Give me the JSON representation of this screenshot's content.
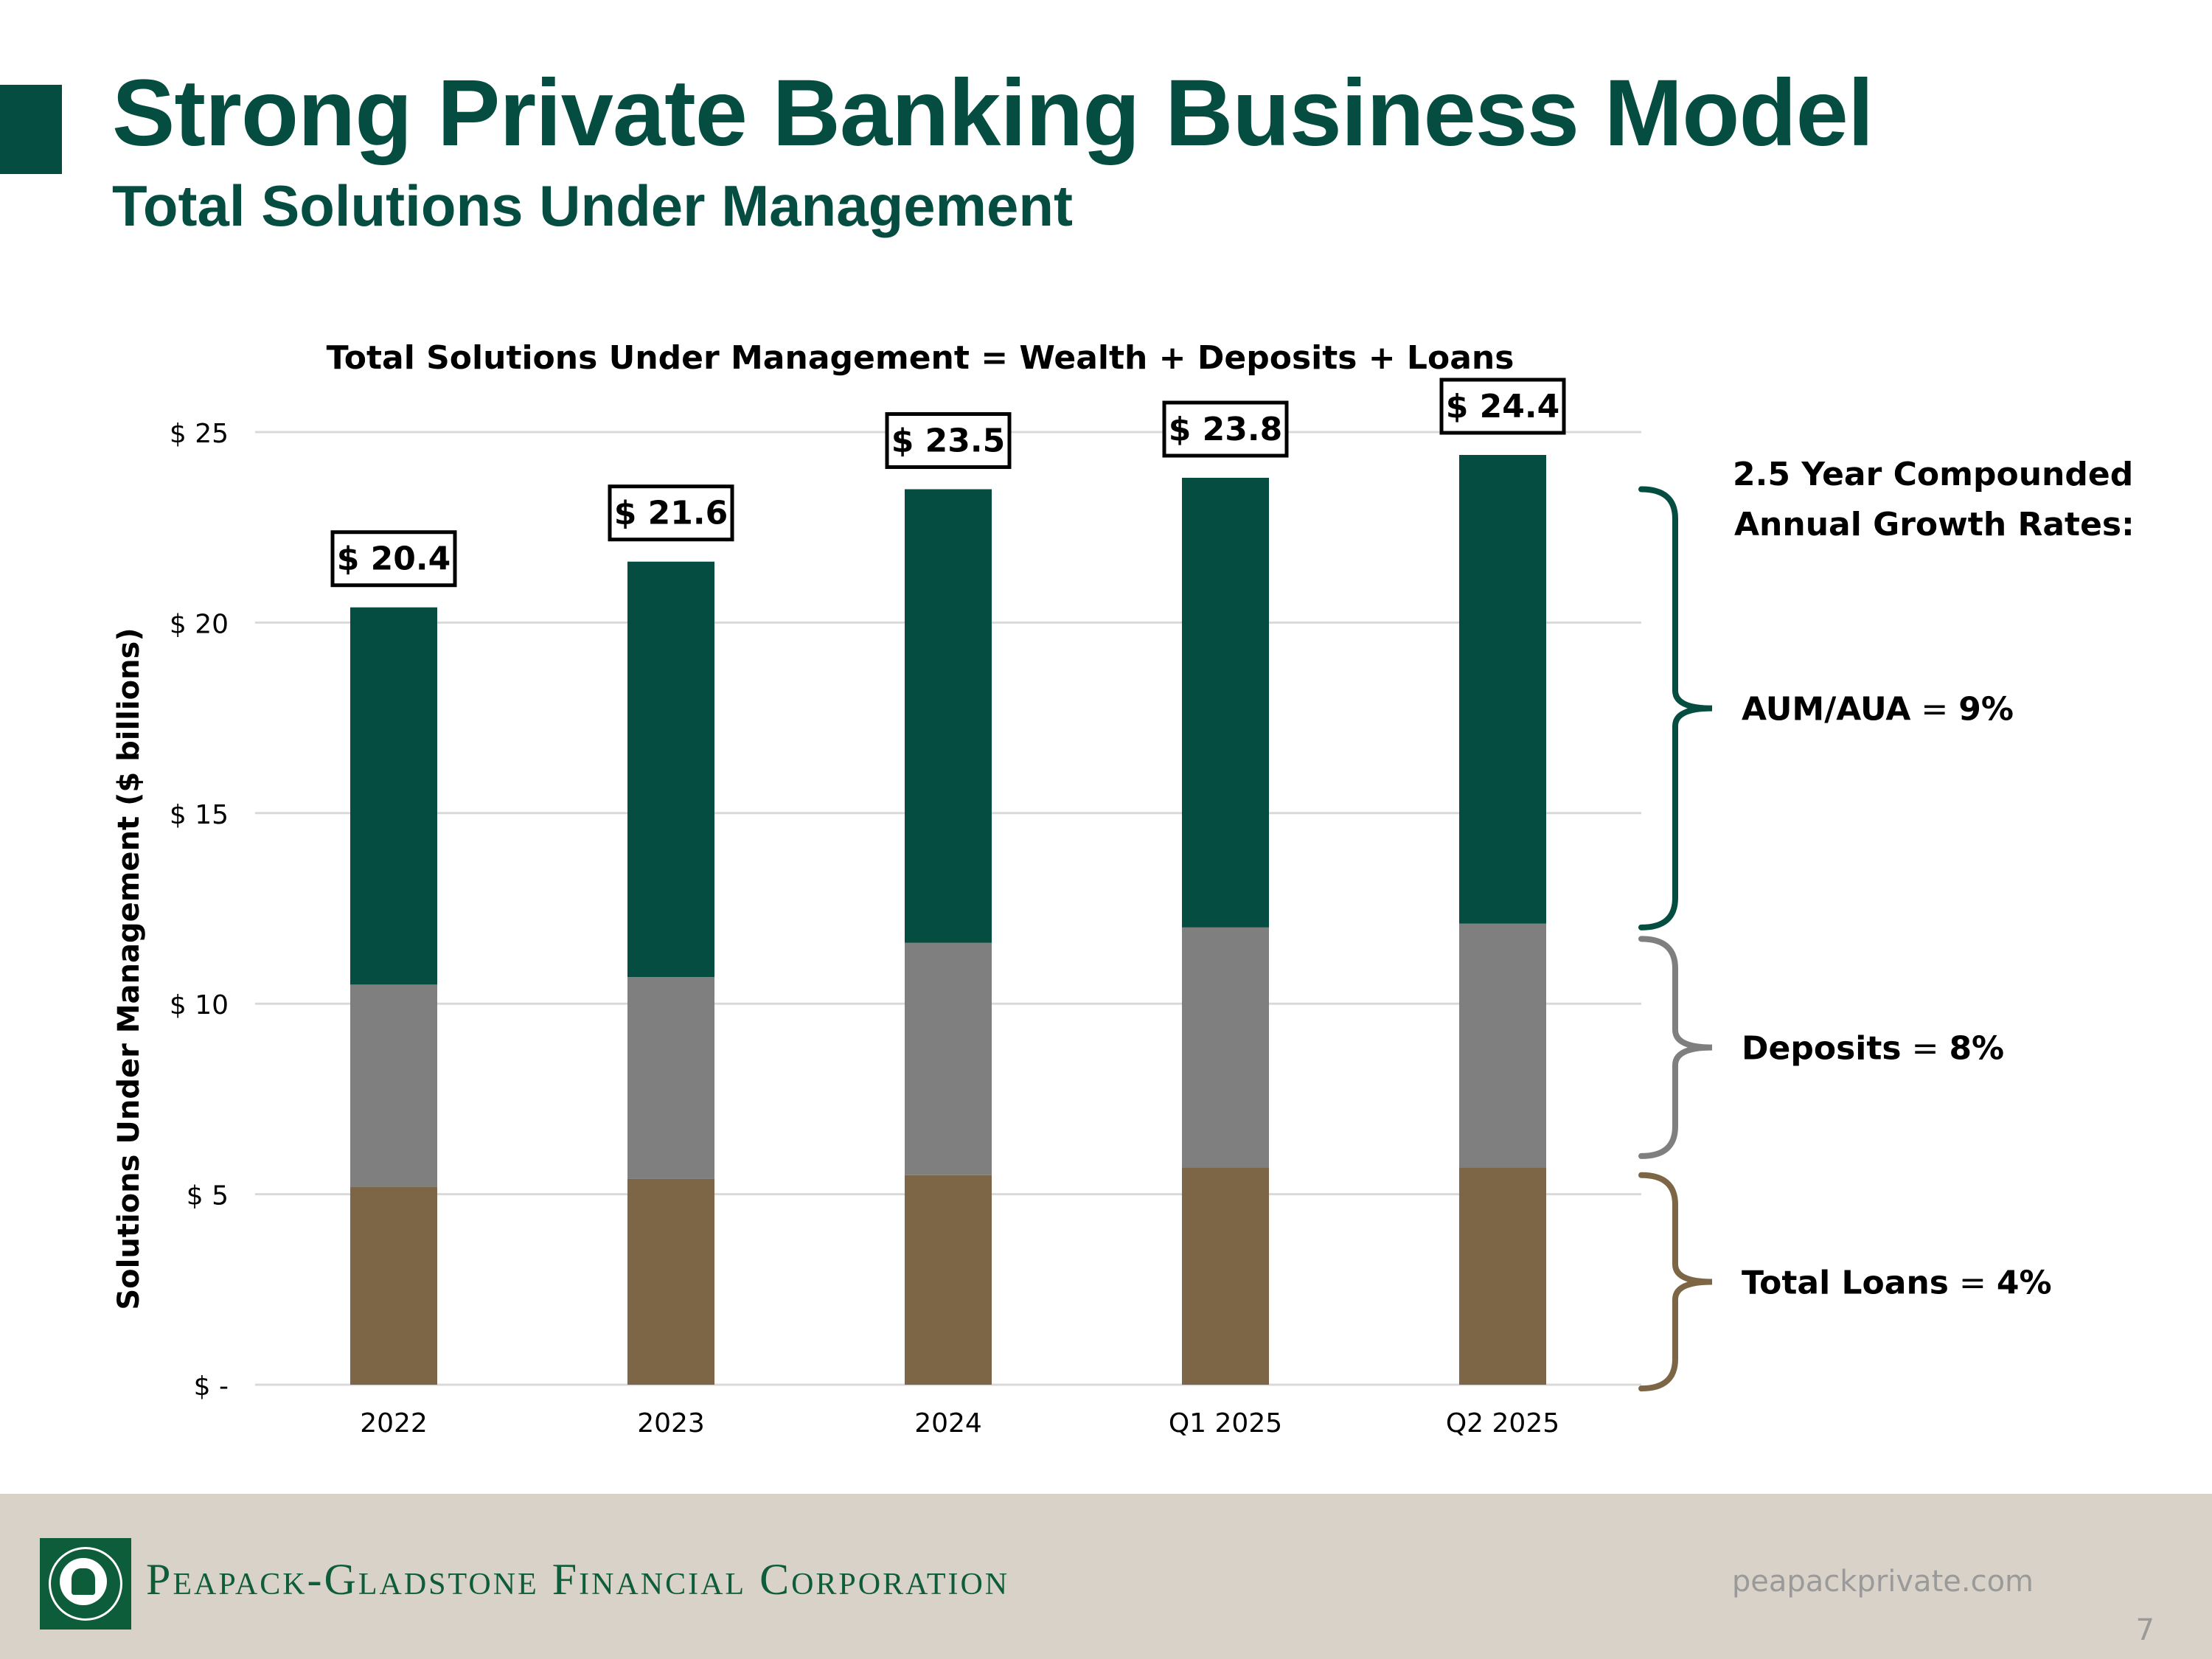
{
  "header": {
    "title": "Strong Private Banking Business Model",
    "subtitle": "Total Solutions Under Management"
  },
  "chart_data": {
    "type": "bar",
    "stacked": true,
    "title": "Total Solutions Under Management = Wealth + Deposits + Loans",
    "ylabel": "Solutions Under Management ($ billions)",
    "xlabel": "",
    "ylim": [
      0,
      25
    ],
    "yticks": [
      {
        "value": 0,
        "label": "$ -"
      },
      {
        "value": 5,
        "label": "$ 5"
      },
      {
        "value": 10,
        "label": "$ 10"
      },
      {
        "value": 15,
        "label": "$ 15"
      },
      {
        "value": 20,
        "label": "$ 20"
      },
      {
        "value": 25,
        "label": "$ 25"
      }
    ],
    "grid": true,
    "categories": [
      "2022",
      "2023",
      "2024",
      "Q1 2025",
      "Q2 2025"
    ],
    "series": [
      {
        "name": "Total Loans",
        "color": "#7d6645",
        "values": [
          5.2,
          5.4,
          5.5,
          5.7,
          5.7
        ]
      },
      {
        "name": "Deposits",
        "color": "#7f7f7f",
        "values": [
          5.3,
          5.3,
          6.1,
          6.3,
          6.4
        ]
      },
      {
        "name": "AUM/AUA",
        "color": "#054d40",
        "values": [
          9.9,
          10.9,
          11.9,
          11.8,
          12.3
        ]
      }
    ],
    "totals": [
      "$ 20.4",
      "$ 21.6",
      "$ 23.5",
      "$ 23.8",
      "$ 24.4"
    ],
    "total_values": [
      20.4,
      21.6,
      23.5,
      23.8,
      24.4
    ],
    "annotations": {
      "heading_line1": "2.5 Year Compounded",
      "heading_line2": "Annual Growth Rates:",
      "rates": [
        {
          "name": "AUM/AUA",
          "separator": " = ",
          "value": "9%",
          "color": "#054d40",
          "range": [
            12.0,
            23.5
          ]
        },
        {
          "name": "Deposits",
          "separator": " = ",
          "value": "8%",
          "color": "#7f7f7f",
          "range": [
            6.0,
            11.7
          ]
        },
        {
          "name": "Total Loans",
          "separator": " = ",
          "value": "4%",
          "color": "#7d6645",
          "range": [
            -0.1,
            5.5
          ]
        }
      ]
    }
  },
  "footer": {
    "company": "Peapack-Gladstone Financial Corporation",
    "website": "peapackprivate.com",
    "page_number": "7"
  }
}
